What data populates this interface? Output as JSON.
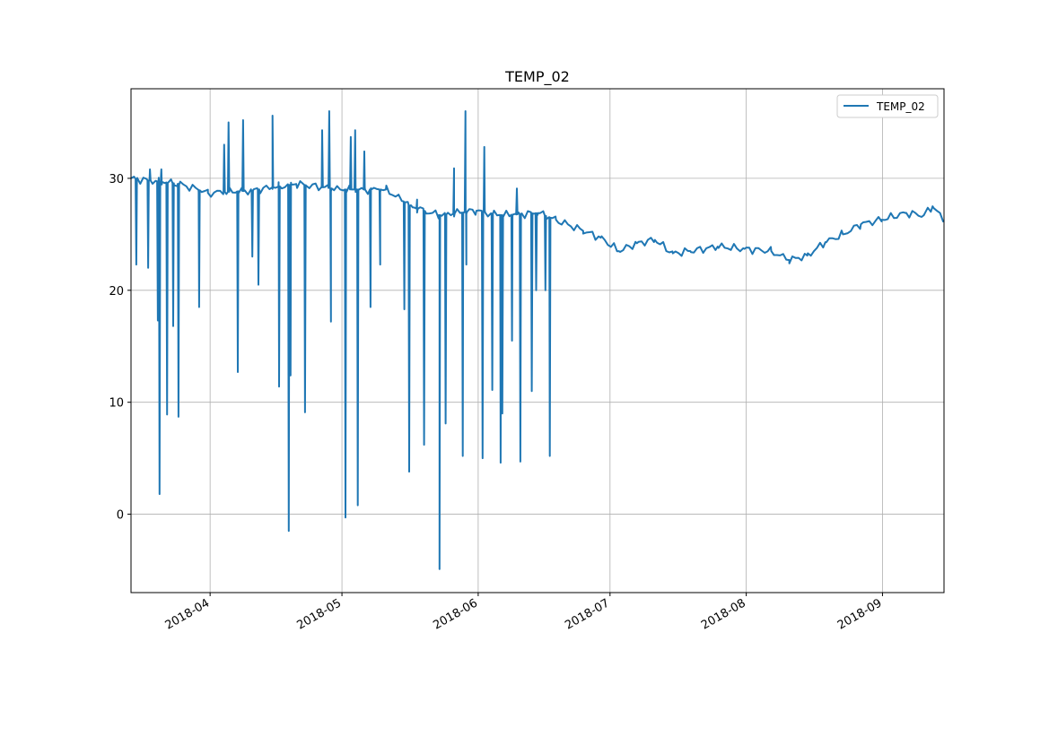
{
  "chart_data": {
    "type": "line",
    "title": "TEMP_02",
    "xlabel": "",
    "ylabel": "",
    "x_origin_date": "2018-03-14",
    "x_units": "days since x_origin_date",
    "xlim": [
      0,
      185
    ],
    "ylim": [
      -7,
      38
    ],
    "grid": true,
    "legend": {
      "placement": "top-right",
      "entries": [
        "TEMP_02"
      ]
    },
    "color": "#1f77b4",
    "xticks": [
      {
        "day": 18,
        "label": "2018-04"
      },
      {
        "day": 48,
        "label": "2018-05"
      },
      {
        "day": 79,
        "label": "2018-06"
      },
      {
        "day": 109,
        "label": "2018-07"
      },
      {
        "day": 140,
        "label": "2018-08"
      },
      {
        "day": 171,
        "label": "2018-09"
      }
    ],
    "yticks": [
      {
        "value": 0,
        "label": "0"
      },
      {
        "value": 10,
        "label": "10"
      },
      {
        "value": 20,
        "label": "20"
      },
      {
        "value": 30,
        "label": "30"
      }
    ],
    "series": [
      {
        "name": "TEMP_02",
        "baseline": [
          [
            0,
            30
          ],
          [
            11,
            29.5
          ],
          [
            17.5,
            28.7
          ],
          [
            27.3,
            28.9
          ],
          [
            37.6,
            29.5
          ],
          [
            47.6,
            29
          ],
          [
            58,
            29
          ],
          [
            64.1,
            27.4
          ],
          [
            70.2,
            26.7
          ],
          [
            78.6,
            27.1
          ],
          [
            84.5,
            26.7
          ],
          [
            92.7,
            26.9
          ],
          [
            96.7,
            26.3
          ],
          [
            102.9,
            25.3
          ],
          [
            106.9,
            24.7
          ],
          [
            111,
            23.5
          ],
          [
            115.1,
            24.2
          ],
          [
            119.2,
            24.5
          ],
          [
            123.3,
            23.3
          ],
          [
            127.3,
            23.5
          ],
          [
            133.5,
            23.9
          ],
          [
            139.6,
            23.7
          ],
          [
            145.7,
            23.5
          ],
          [
            149.8,
            22.7
          ],
          [
            153.9,
            23.1
          ],
          [
            158,
            24.3
          ],
          [
            162,
            25
          ],
          [
            166.1,
            25.9
          ],
          [
            170.8,
            26.3
          ],
          [
            176.3,
            26.9
          ],
          [
            180.4,
            26.7
          ],
          [
            182.4,
            27.5
          ],
          [
            184.9,
            26.3
          ]
        ],
        "spikes": [
          [
            1.2,
            22.3
          ],
          [
            3.9,
            22
          ],
          [
            4.3,
            30.8
          ],
          [
            6.1,
            17.3
          ],
          [
            6.5,
            1.8
          ],
          [
            6.9,
            30.8
          ],
          [
            8.2,
            8.9
          ],
          [
            9.6,
            16.8
          ],
          [
            10.8,
            8.7
          ],
          [
            15.5,
            18.5
          ],
          [
            21.2,
            33
          ],
          [
            22.2,
            35
          ],
          [
            24.3,
            12.7
          ],
          [
            25.5,
            35.2
          ],
          [
            27.6,
            23
          ],
          [
            29,
            20.5
          ],
          [
            32.2,
            35.6
          ],
          [
            33.7,
            11.4
          ],
          [
            35.9,
            -1.5
          ],
          [
            36.3,
            12.4
          ],
          [
            39.6,
            9.1
          ],
          [
            43.5,
            34.3
          ],
          [
            45.1,
            36
          ],
          [
            45.5,
            17.2
          ],
          [
            48.8,
            -0.3
          ],
          [
            50,
            33.7
          ],
          [
            51,
            34.3
          ],
          [
            51.6,
            0.8
          ],
          [
            53.1,
            32.4
          ],
          [
            54.5,
            18.5
          ],
          [
            56.7,
            22.3
          ],
          [
            62.2,
            18.3
          ],
          [
            63.3,
            3.8
          ],
          [
            65.1,
            28.1
          ],
          [
            66.7,
            6.2
          ],
          [
            70.2,
            -4.9
          ],
          [
            71.6,
            8.1
          ],
          [
            73.5,
            30.9
          ],
          [
            75.5,
            5.2
          ],
          [
            76.1,
            36
          ],
          [
            76.3,
            22.3
          ],
          [
            80,
            5
          ],
          [
            80.4,
            32.8
          ],
          [
            82.2,
            11.1
          ],
          [
            84.1,
            4.6
          ],
          [
            84.5,
            9
          ],
          [
            86.7,
            15.5
          ],
          [
            87.8,
            29.1
          ],
          [
            88.6,
            4.7
          ],
          [
            91.2,
            11
          ],
          [
            92.2,
            20
          ],
          [
            94.3,
            20
          ],
          [
            95.3,
            5.2
          ]
        ]
      }
    ]
  }
}
